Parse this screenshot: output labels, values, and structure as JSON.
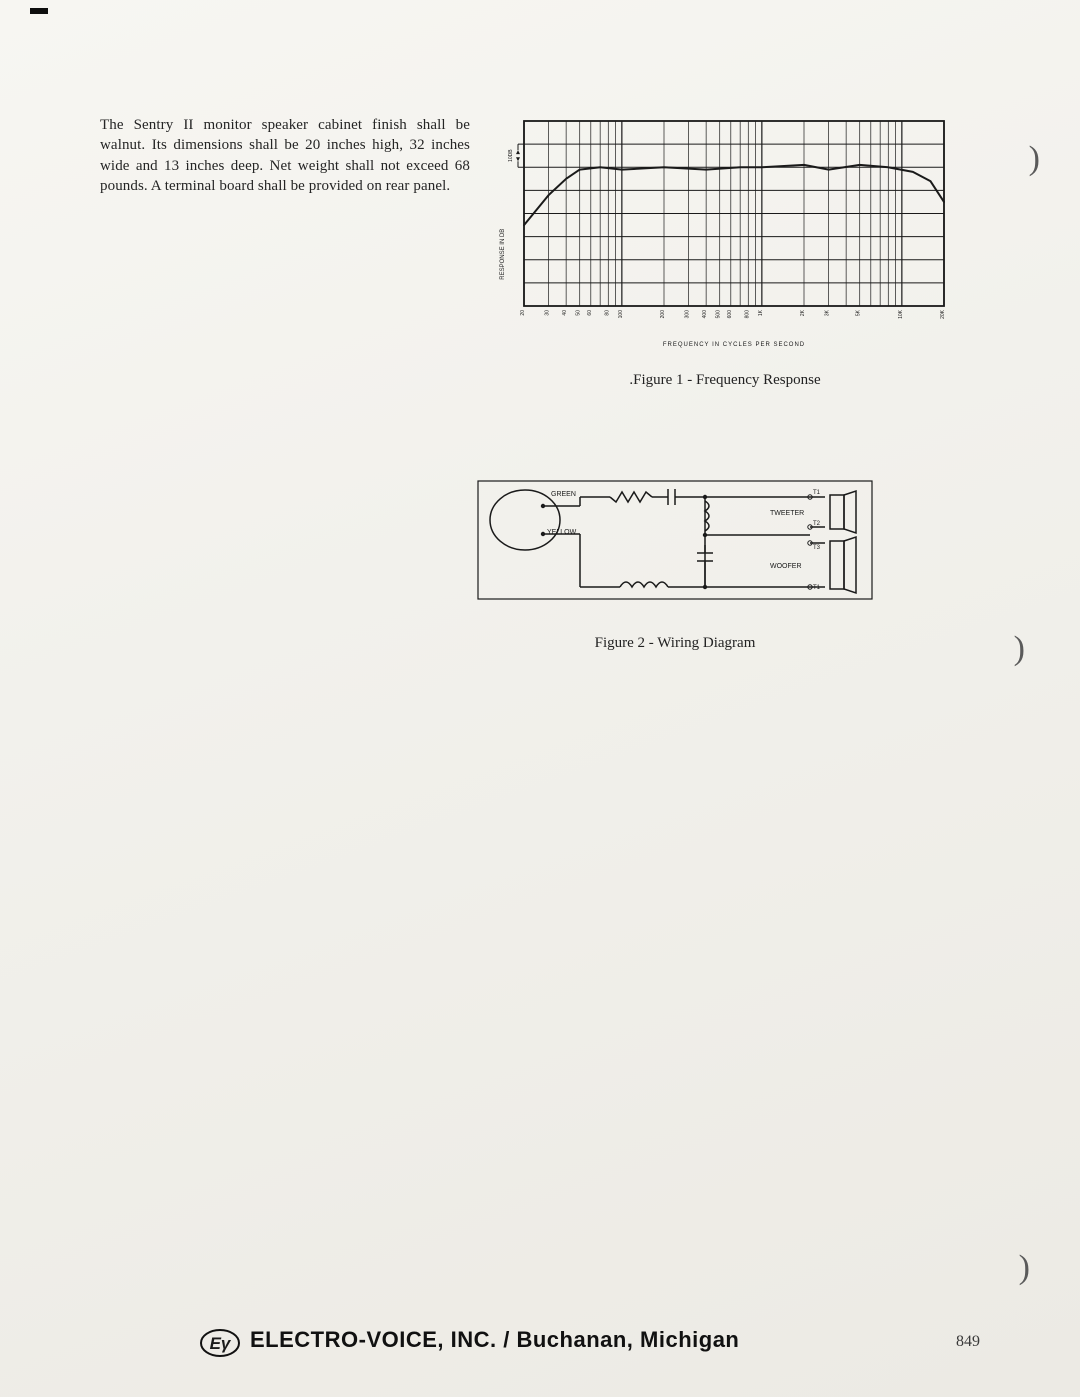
{
  "body_paragraph": "The Sentry II monitor speaker cabinet finish shall be walnut. Its dimensions shall be 20 inches high, 32 inches wide and 13 inches deep. Net weight shall not exceed 68 pounds. A terminal board shall be provided on rear panel.",
  "figure1": {
    "caption": ".Figure 1 - Frequency Response",
    "type": "line",
    "xlabel": "FREQUENCY IN CYCLES PER SECOND",
    "ylabel": "RESPONSE IN DB",
    "ylabel_marker": "10DB",
    "font_sizes": {
      "axis_label": 6,
      "tick": 5
    },
    "stroke_color": "#1a1a1a",
    "stroke_width_main": 1.8,
    "stroke_width_grid": 1,
    "background_color": "transparent",
    "x_ticks": [
      20,
      30,
      40,
      50,
      60,
      80,
      100,
      200,
      300,
      400,
      500,
      600,
      800,
      1000,
      2000,
      3000,
      5000,
      10000,
      20000
    ],
    "x_tick_labels": [
      "20",
      "30",
      "40",
      "50",
      "60",
      "80",
      "100",
      "200",
      "300",
      "400",
      "500",
      "600",
      "800",
      "1K",
      "2K",
      "3K",
      "5K",
      "10K",
      "20K"
    ],
    "y_grid_count": 9,
    "response_points": [
      {
        "f": 20,
        "db": -25
      },
      {
        "f": 30,
        "db": -12
      },
      {
        "f": 40,
        "db": -5
      },
      {
        "f": 50,
        "db": -1
      },
      {
        "f": 70,
        "db": 0
      },
      {
        "f": 100,
        "db": -1
      },
      {
        "f": 200,
        "db": 0
      },
      {
        "f": 400,
        "db": -1
      },
      {
        "f": 700,
        "db": 0
      },
      {
        "f": 1000,
        "db": 0
      },
      {
        "f": 2000,
        "db": 1
      },
      {
        "f": 3000,
        "db": -1
      },
      {
        "f": 5000,
        "db": 1
      },
      {
        "f": 8000,
        "db": 0
      },
      {
        "f": 12000,
        "db": -2
      },
      {
        "f": 16000,
        "db": -6
      },
      {
        "f": 20000,
        "db": -15
      }
    ],
    "y_db_per_div": 10,
    "y_ref_row_from_top": 2
  },
  "figure2": {
    "caption": "Figure 2 - Wiring Diagram",
    "type": "schematic",
    "stroke_color": "#1a1a1a",
    "stroke_width": 1.5,
    "font_size_label": 7,
    "labels": {
      "green": "GREEN",
      "yellow": "YELLOW",
      "tweeter": "TWEETER",
      "woofer": "WOOFER",
      "t1": "T1",
      "t2": "T2",
      "t3": "T3"
    }
  },
  "footer": {
    "company": "ELECTRO-VOICE, INC. / Buchanan, Michigan",
    "logo_text": "Eγ",
    "page_number": "849"
  },
  "colors": {
    "text": "#2a2a2a",
    "ink": "#1a1a1a",
    "page_bg_top": "#f7f6f2",
    "page_bg_bottom": "#eceae4"
  }
}
